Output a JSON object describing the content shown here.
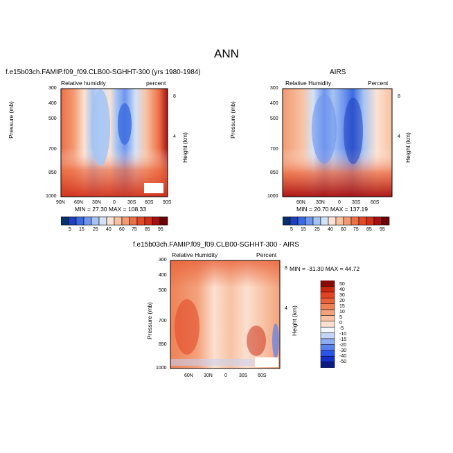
{
  "title": "ANN",
  "colors": {
    "rh_scale": [
      "#08306b",
      "#1f3fbf",
      "#3a6be0",
      "#6f95ee",
      "#a6c4f2",
      "#d2e2f7",
      "#fbe2d3",
      "#f8c2a2",
      "#f29a72",
      "#ec6f47",
      "#e34a2a",
      "#d0301a",
      "#a80f10",
      "#6b0008"
    ],
    "diff_scale": [
      "#0b1a80",
      "#1530c8",
      "#2b55e6",
      "#5a80ef",
      "#8eaaf3",
      "#c4d4f7",
      "#f3f6fb",
      "#fbe0cf",
      "#f8c3a5",
      "#f3a27c",
      "#ee8156",
      "#e9623a",
      "#e24322",
      "#c8260f",
      "#8a0805"
    ]
  },
  "panels": {
    "model": {
      "title": "f.e15b03ch.FAMIP.f09_f09.CLB00-SGHHT-300 (yrs 1980-1984)",
      "left_label": "Relative humidity",
      "right_label": "percent",
      "minmax": "MIN =  27.30   MAX = 108.33"
    },
    "obs": {
      "title": "AIRS",
      "left_label": "Relative Humidity",
      "right_label": "Percent",
      "minmax": "MIN =  20.70   MAX = 137.19"
    },
    "diff": {
      "title": "f.e15b03ch.FAMIP.f09_f09.CLB00-SGHHT-300 - AIRS",
      "left_label": "Relative Humidity",
      "right_label": "Percent",
      "minmax": "MIN = -31.30   MAX =  44.72"
    }
  },
  "axes": {
    "ylabel": "Pressure (mb)",
    "y2label": "Height (km)",
    "p_ticks": [
      "300",
      "400",
      "500",
      "700",
      "850",
      "1000"
    ],
    "h_ticks": [
      "8",
      "4"
    ],
    "lat_ticks_full": [
      "90N",
      "60N",
      "30N",
      "0",
      "30S",
      "60S",
      "90S"
    ],
    "lat_ticks_inner": [
      "60N",
      "30N",
      "0",
      "30S",
      "60S"
    ]
  },
  "chart_data": [
    {
      "type": "heatmap",
      "title": "f.e15b03ch.FAMIP.f09_f09.CLB00-SGHHT-300 (yrs 1980-1984)",
      "xlabel": "",
      "ylabel": "Pressure (mb)",
      "y2label": "Height (km)",
      "x": [
        "90N",
        "60N",
        "30N",
        "0",
        "30S",
        "60S",
        "90S"
      ],
      "y": [
        300,
        400,
        500,
        700,
        850,
        1000
      ],
      "min": 27.3,
      "max": 108.33,
      "colorbar_labels": [
        "5",
        "15",
        "25",
        "40",
        "60",
        "75",
        "85",
        "95"
      ]
    },
    {
      "type": "heatmap",
      "title": "AIRS",
      "xlabel": "",
      "ylabel": "Pressure (mb)",
      "y2label": "Height (km)",
      "x": [
        "60N",
        "30N",
        "0",
        "30S",
        "60S"
      ],
      "y": [
        300,
        400,
        500,
        700,
        850,
        1000
      ],
      "min": 20.7,
      "max": 137.19,
      "colorbar_labels": [
        "5",
        "15",
        "25",
        "40",
        "60",
        "75",
        "85",
        "95"
      ]
    },
    {
      "type": "heatmap",
      "title": "f.e15b03ch.FAMIP.f09_f09.CLB00-SGHHT-300 - AIRS",
      "xlabel": "",
      "ylabel": "Pressure (mb)",
      "y2label": "Height (km)",
      "x": [
        "60N",
        "30N",
        "0",
        "30S",
        "60S"
      ],
      "y": [
        300,
        400,
        500,
        700,
        850,
        1000
      ],
      "min": -31.3,
      "max": 44.72,
      "colorbar_labels": [
        "50",
        "40",
        "30",
        "20",
        "15",
        "10",
        "5",
        "0",
        "-5",
        "-10",
        "-15",
        "-20",
        "-30",
        "-40",
        "-50"
      ]
    }
  ],
  "colorbar": {
    "rh_labels": [
      "5",
      "15",
      "25",
      "40",
      "60",
      "75",
      "85",
      "95"
    ],
    "diff_labels": [
      "50",
      "40",
      "30",
      "20",
      "15",
      "10",
      "5",
      "0",
      "-5",
      "-10",
      "-15",
      "-20",
      "-30",
      "-40",
      "-50"
    ]
  }
}
